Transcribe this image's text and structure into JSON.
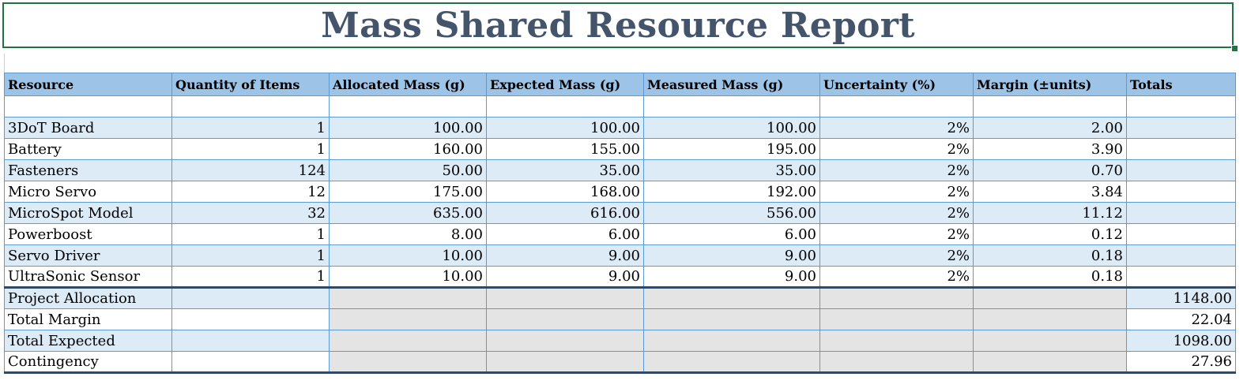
{
  "title": "Mass Shared Resource Report",
  "columns": [
    "Resource",
    "Quantity of Items",
    "Allocated Mass (g)",
    "Expected Mass (g)",
    "Measured Mass (g)",
    "Uncertainty (%)",
    "Margin (±units)",
    "Totals"
  ],
  "rows": [
    {
      "resource": "3DoT Board",
      "qty": "1",
      "allocated": "100.00",
      "expected": "100.00",
      "measured": "100.00",
      "uncertainty": "2%",
      "margin": "2.00"
    },
    {
      "resource": "Battery",
      "qty": "1",
      "allocated": "160.00",
      "expected": "155.00",
      "measured": "195.00",
      "uncertainty": "2%",
      "margin": "3.90"
    },
    {
      "resource": "Fasteners",
      "qty": "124",
      "allocated": "50.00",
      "expected": "35.00",
      "measured": "35.00",
      "uncertainty": "2%",
      "margin": "0.70"
    },
    {
      "resource": "Micro Servo",
      "qty": "12",
      "allocated": "175.00",
      "expected": "168.00",
      "measured": "192.00",
      "uncertainty": "2%",
      "margin": "3.84"
    },
    {
      "resource": "MicroSpot Model",
      "qty": "32",
      "allocated": "635.00",
      "expected": "616.00",
      "measured": "556.00",
      "uncertainty": "2%",
      "margin": "11.12"
    },
    {
      "resource": "Powerboost",
      "qty": "1",
      "allocated": "8.00",
      "expected": "6.00",
      "measured": "6.00",
      "uncertainty": "2%",
      "margin": "0.12"
    },
    {
      "resource": "Servo Driver",
      "qty": "1",
      "allocated": "10.00",
      "expected": "9.00",
      "measured": "9.00",
      "uncertainty": "2%",
      "margin": "0.18"
    },
    {
      "resource": "UltraSonic Sensor",
      "qty": "1",
      "allocated": "10.00",
      "expected": "9.00",
      "measured": "9.00",
      "uncertainty": "2%",
      "margin": "0.18"
    }
  ],
  "summary": [
    {
      "label": "Project Allocation",
      "total": "1148.00"
    },
    {
      "label": "Total Margin",
      "total": "22.04"
    },
    {
      "label": "Total Expected",
      "total": "1098.00"
    },
    {
      "label": "Contingency",
      "total": "27.96"
    }
  ],
  "colors": {
    "header_fill": "#9dc3e6",
    "band_fill": "#ddebf7",
    "grid": "#5b9bd5",
    "title": "#44546a",
    "selection": "#217346",
    "summary_border": "#1f4e79",
    "grey_fill": "#e4e4e4"
  }
}
